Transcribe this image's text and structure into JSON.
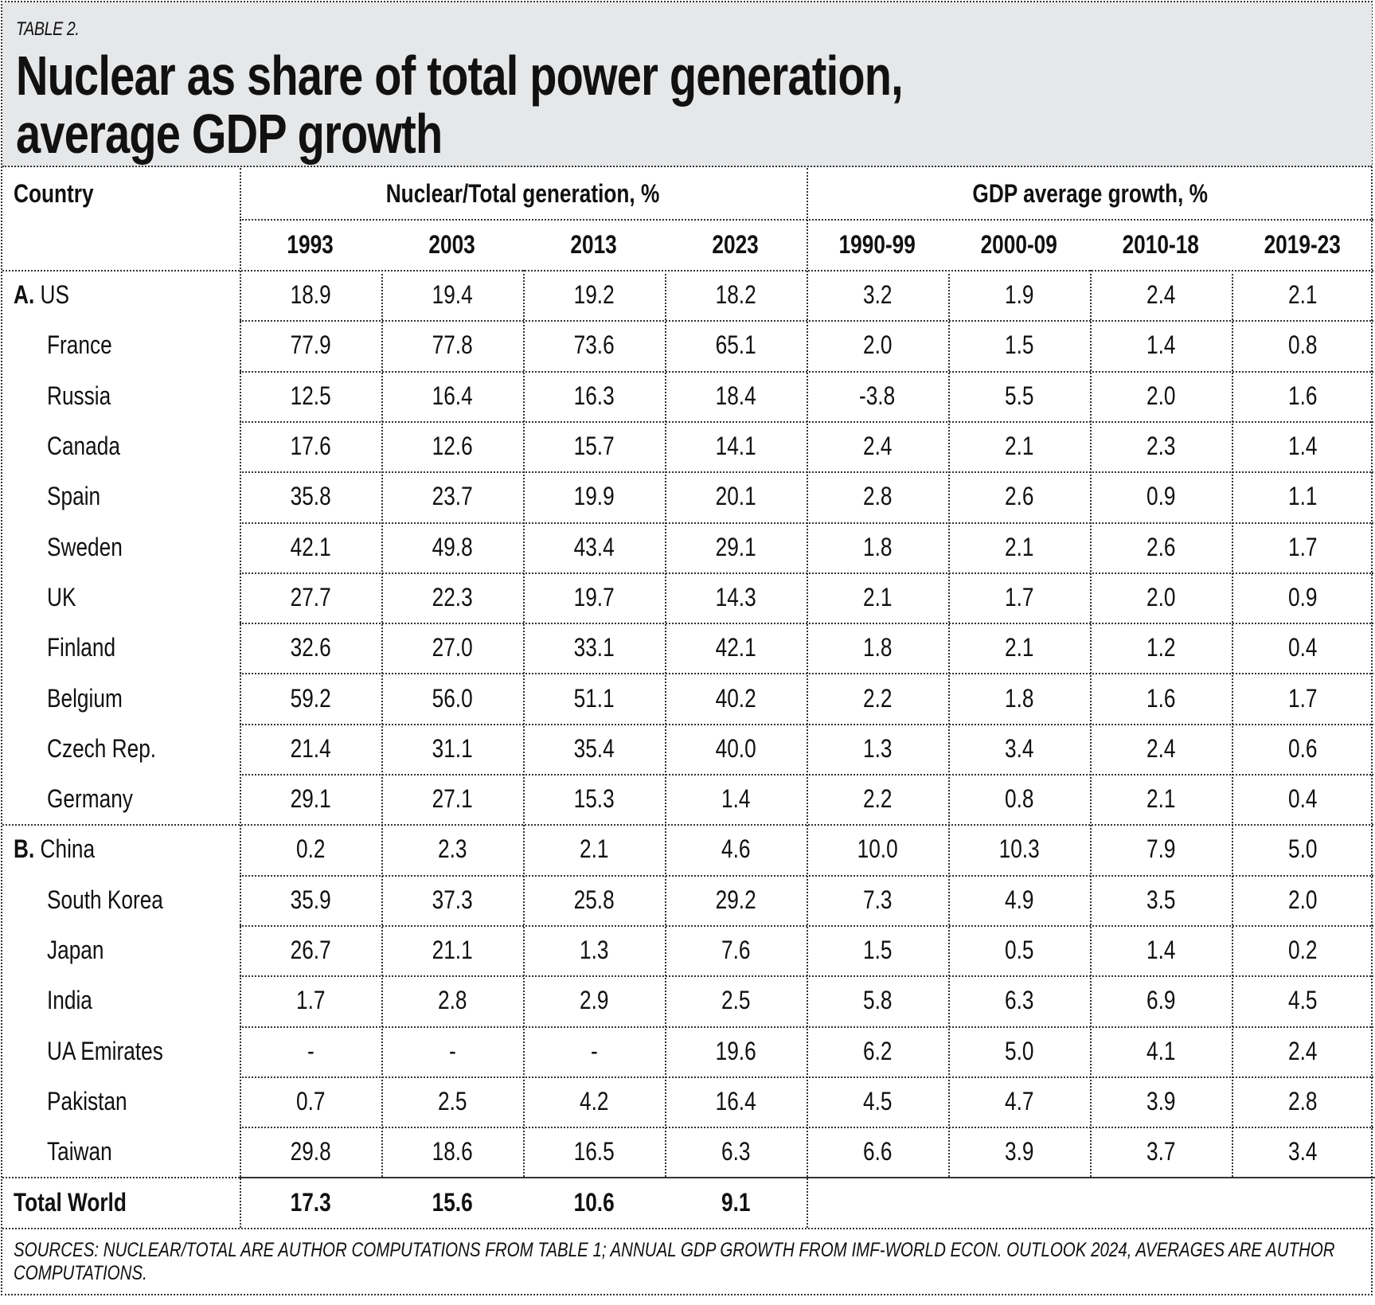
{
  "table_label": "TABLE 2.",
  "title_line1": "Nuclear as share of total power generation,",
  "title_line2": "average GDP growth",
  "header": {
    "country": "Country",
    "group_nuclear": "Nuclear/Total generation, %",
    "group_gdp": "GDP average growth, %",
    "nuclear_years": [
      "1993",
      "2003",
      "2013",
      "2023"
    ],
    "gdp_periods": [
      "1990-99",
      "2000-09",
      "2010-18",
      "2019-23"
    ]
  },
  "rows": [
    {
      "group": "A.",
      "country": "US",
      "values": [
        "18.9",
        "19.4",
        "19.2",
        "18.2",
        "3.2",
        "1.9",
        "2.4",
        "2.1"
      ]
    },
    {
      "group": "",
      "country": "France",
      "values": [
        "77.9",
        "77.8",
        "73.6",
        "65.1",
        "2.0",
        "1.5",
        "1.4",
        "0.8"
      ]
    },
    {
      "group": "",
      "country": "Russia",
      "values": [
        "12.5",
        "16.4",
        "16.3",
        "18.4",
        "-3.8",
        "5.5",
        "2.0",
        "1.6"
      ]
    },
    {
      "group": "",
      "country": "Canada",
      "values": [
        "17.6",
        "12.6",
        "15.7",
        "14.1",
        "2.4",
        "2.1",
        "2.3",
        "1.4"
      ]
    },
    {
      "group": "",
      "country": "Spain",
      "values": [
        "35.8",
        "23.7",
        "19.9",
        "20.1",
        "2.8",
        "2.6",
        "0.9",
        "1.1"
      ]
    },
    {
      "group": "",
      "country": "Sweden",
      "values": [
        "42.1",
        "49.8",
        "43.4",
        "29.1",
        "1.8",
        "2.1",
        "2.6",
        "1.7"
      ]
    },
    {
      "group": "",
      "country": "UK",
      "values": [
        "27.7",
        "22.3",
        "19.7",
        "14.3",
        "2.1",
        "1.7",
        "2.0",
        "0.9"
      ]
    },
    {
      "group": "",
      "country": "Finland",
      "values": [
        "32.6",
        "27.0",
        "33.1",
        "42.1",
        "1.8",
        "2.1",
        "1.2",
        "0.4"
      ]
    },
    {
      "group": "",
      "country": "Belgium",
      "values": [
        "59.2",
        "56.0",
        "51.1",
        "40.2",
        "2.2",
        "1.8",
        "1.6",
        "1.7"
      ]
    },
    {
      "group": "",
      "country": "Czech Rep.",
      "values": [
        "21.4",
        "31.1",
        "35.4",
        "40.0",
        "1.3",
        "3.4",
        "2.4",
        "0.6"
      ]
    },
    {
      "group": "",
      "country": "Germany",
      "values": [
        "29.1",
        "27.1",
        "15.3",
        "1.4",
        "2.2",
        "0.8",
        "2.1",
        "0.4"
      ]
    },
    {
      "group": "B.",
      "country": "China",
      "values": [
        "0.2",
        "2.3",
        "2.1",
        "4.6",
        "10.0",
        "10.3",
        "7.9",
        "5.0"
      ]
    },
    {
      "group": "",
      "country": "South Korea",
      "values": [
        "35.9",
        "37.3",
        "25.8",
        "29.2",
        "7.3",
        "4.9",
        "3.5",
        "2.0"
      ]
    },
    {
      "group": "",
      "country": "Japan",
      "values": [
        "26.7",
        "21.1",
        "1.3",
        "7.6",
        "1.5",
        "0.5",
        "1.4",
        "0.2"
      ]
    },
    {
      "group": "",
      "country": "India",
      "values": [
        "1.7",
        "2.8",
        "2.9",
        "2.5",
        "5.8",
        "6.3",
        "6.9",
        "4.5"
      ]
    },
    {
      "group": "",
      "country": "UA Emirates",
      "values": [
        "-",
        "-",
        "-",
        "19.6",
        "6.2",
        "5.0",
        "4.1",
        "2.4"
      ]
    },
    {
      "group": "",
      "country": "Pakistan",
      "values": [
        "0.7",
        "2.5",
        "4.2",
        "16.4",
        "4.5",
        "4.7",
        "3.9",
        "2.8"
      ]
    },
    {
      "group": "",
      "country": "Taiwan",
      "values": [
        "29.8",
        "18.6",
        "16.5",
        "6.3",
        "6.6",
        "3.9",
        "3.7",
        "3.4"
      ]
    }
  ],
  "total": {
    "country": "Total World",
    "values": [
      "17.3",
      "15.6",
      "10.6",
      "9.1"
    ]
  },
  "sources": "SOURCES: NUCLEAR/TOTAL ARE AUTHOR COMPUTATIONS FROM TABLE 1; ANNUAL GDP GROWTH FROM IMF-WORLD ECON. OUTLOOK 2024, AVERAGES ARE AUTHOR COMPUTATIONS.",
  "colors": {
    "title_band": "#e6e7e9",
    "rule": "#333333",
    "text": "#111111"
  }
}
